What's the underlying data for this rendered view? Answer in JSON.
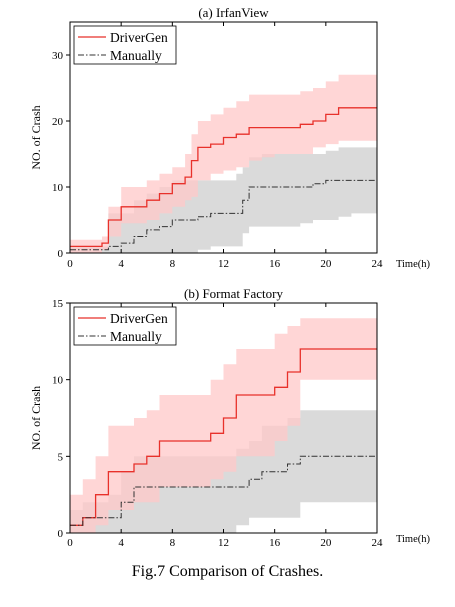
{
  "caption": "Fig.7 Comparison of Crashes.",
  "colors": {
    "drivergen": "#e8312b",
    "drivergen_band": "#ffc8c8",
    "manual": "#333333",
    "manual_band": "#d6d6d6"
  },
  "chart_data": [
    {
      "type": "line",
      "title": "(a) IrfanView",
      "xlabel": "Time(h)",
      "ylabel": "NO. of Crash",
      "xlim": [
        0,
        24
      ],
      "ylim": [
        0,
        35
      ],
      "xticks": [
        0,
        4,
        8,
        12,
        16,
        20,
        24
      ],
      "yticks": [
        0,
        10,
        20,
        30
      ],
      "legend": "top-left",
      "grid": false,
      "series": [
        {
          "name": "DriverGen",
          "style": "solid-step",
          "x": [
            0,
            2,
            2.5,
            3,
            4,
            6,
            7,
            8,
            9,
            9.5,
            10,
            11,
            12,
            13,
            14,
            15,
            16,
            17,
            18,
            19,
            20,
            21,
            22,
            24
          ],
          "y": [
            1,
            1,
            1.5,
            5,
            7,
            8,
            9,
            10.5,
            11.5,
            14,
            16,
            16.5,
            17.5,
            18,
            19,
            19,
            19,
            19,
            19.5,
            20,
            21,
            22,
            22,
            22
          ],
          "band_low": [
            0,
            0,
            0.5,
            2.5,
            4.5,
            5,
            6,
            7,
            8,
            8.5,
            11,
            12,
            12.5,
            13,
            14,
            14.5,
            15,
            15,
            15,
            16,
            16.5,
            17,
            17,
            17
          ],
          "band_high": [
            2,
            2,
            2.5,
            7,
            10,
            11,
            12,
            13,
            15,
            18,
            20,
            21,
            22,
            23,
            24,
            24,
            24,
            24,
            24.5,
            25,
            26,
            27,
            27,
            27
          ]
        },
        {
          "name": "Manually",
          "style": "dashdot-step",
          "x": [
            0,
            2,
            3,
            4,
            5,
            6,
            7,
            8,
            9,
            10,
            11,
            12,
            13,
            13.5,
            14,
            15,
            16,
            17,
            18,
            19,
            20,
            21,
            22,
            24
          ],
          "y": [
            0.5,
            0.5,
            1,
            1.5,
            2.5,
            3.5,
            4,
            5,
            5,
            5.5,
            6,
            6,
            6,
            8,
            10,
            10,
            10,
            10,
            10,
            10.5,
            11,
            11,
            11,
            12
          ],
          "band_low": [
            0,
            0,
            0,
            0,
            0,
            0,
            0,
            0,
            0,
            0.5,
            1,
            1,
            1,
            3,
            4,
            4,
            4,
            4,
            4.5,
            5,
            5,
            5.5,
            6,
            7
          ],
          "band_high": [
            1,
            1,
            6,
            6,
            8,
            9,
            10,
            11,
            11,
            11,
            11,
            11,
            12,
            13,
            14.5,
            15,
            15,
            15,
            15,
            15,
            15.5,
            16,
            16,
            17
          ]
        }
      ]
    },
    {
      "type": "line",
      "title": "(b) Format Factory",
      "xlabel": "Time(h)",
      "ylabel": "NO. of Crash",
      "xlim": [
        0,
        24
      ],
      "ylim": [
        0,
        15
      ],
      "xticks": [
        0,
        4,
        8,
        12,
        16,
        20,
        24
      ],
      "yticks": [
        0,
        5,
        10,
        15
      ],
      "legend": "top-left",
      "grid": false,
      "series": [
        {
          "name": "DriverGen",
          "style": "solid-step",
          "x": [
            0,
            1,
            2,
            3,
            4,
            5,
            6,
            7,
            8,
            9,
            10,
            11,
            12,
            13,
            14,
            15,
            16,
            17,
            18,
            24
          ],
          "y": [
            0.5,
            1,
            2.5,
            4,
            4,
            4.5,
            5,
            6,
            6,
            6,
            6,
            6.5,
            7.5,
            9,
            9,
            9,
            9.5,
            10.5,
            12,
            12
          ],
          "band_low": [
            0,
            0,
            0.5,
            1.5,
            1.5,
            2,
            2,
            3,
            3,
            3,
            3,
            3.5,
            4,
            5,
            5,
            5,
            6,
            7,
            10,
            10
          ],
          "band_high": [
            2.5,
            3.5,
            5,
            7,
            7,
            7.5,
            8,
            9,
            9,
            9,
            9,
            10,
            11,
            12,
            12,
            12,
            13,
            13.5,
            14,
            14
          ]
        },
        {
          "name": "Manually",
          "style": "dashdot-step",
          "x": [
            0,
            1,
            2,
            3,
            4,
            5,
            6,
            7,
            8,
            9,
            10,
            11,
            12,
            13,
            14,
            15,
            16,
            17,
            18,
            24
          ],
          "y": [
            0.5,
            1,
            1,
            1,
            2,
            3,
            3,
            3,
            3,
            3,
            3,
            3,
            3,
            3,
            3.5,
            4,
            4,
            4.5,
            5,
            5
          ],
          "band_low": [
            0,
            0,
            0,
            0,
            0,
            0,
            0,
            0,
            0,
            0,
            0,
            0,
            0,
            0.5,
            1,
            1,
            1,
            1,
            2,
            2
          ],
          "band_high": [
            1.5,
            2,
            2,
            2.5,
            4,
            5,
            5,
            5,
            5,
            5,
            5,
            5,
            5,
            5.5,
            6,
            7,
            7,
            7.5,
            8,
            8
          ]
        }
      ]
    }
  ]
}
